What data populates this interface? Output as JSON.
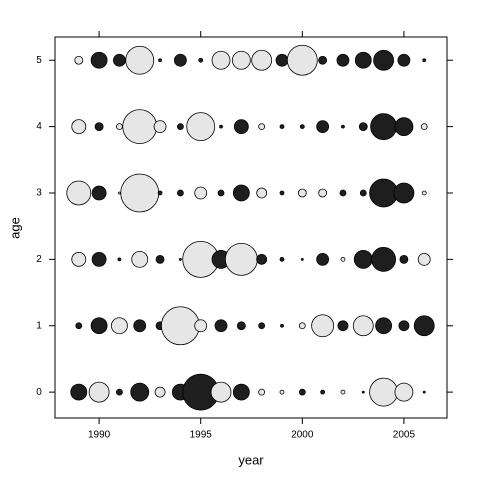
{
  "chart_data": {
    "type": "bubble",
    "x_label": "year",
    "y_label": "age",
    "x": [
      1989,
      1990,
      1991,
      1992,
      1993,
      1994,
      1995,
      1996,
      1997,
      1998,
      1999,
      2000,
      2001,
      2002,
      2003,
      2004,
      2005,
      2006
    ],
    "y": [
      0,
      1,
      2,
      3,
      4,
      5
    ],
    "values": [
      [
        0.8,
        -1.0,
        0.3,
        0.9,
        -0.5,
        0.8,
        1.8,
        -1.0,
        0.8,
        -0.3,
        -0.2,
        0.3,
        0.2,
        -0.2,
        0.1,
        -1.4,
        -0.9,
        0.1
      ],
      [
        0.3,
        0.8,
        -0.8,
        0.6,
        0.4,
        -1.9,
        -0.6,
        0.6,
        0.4,
        0.3,
        0.15,
        -0.3,
        -1.1,
        0.5,
        -1.0,
        0.8,
        0.5,
        1.0
      ],
      [
        -0.7,
        0.7,
        0.15,
        -0.8,
        0.4,
        0.1,
        -1.8,
        0.9,
        -1.6,
        0.5,
        0.2,
        0.1,
        0.6,
        -0.2,
        0.9,
        1.2,
        0.4,
        -0.6
      ],
      [
        -1.2,
        0.7,
        -0.1,
        -1.9,
        0.2,
        0.3,
        -0.6,
        0.3,
        0.8,
        -0.5,
        0.2,
        -0.4,
        -0.4,
        0.3,
        0.3,
        1.4,
        1.0,
        -0.2
      ],
      [
        -0.7,
        0.4,
        -0.3,
        -1.7,
        -0.6,
        0.3,
        -1.4,
        0.15,
        0.7,
        -0.3,
        0.2,
        0.2,
        0.6,
        0.15,
        0.4,
        1.3,
        0.9,
        -0.3
      ],
      [
        -0.4,
        0.8,
        0.6,
        -1.4,
        0.15,
        0.6,
        0.2,
        -0.9,
        -0.9,
        -1.0,
        0.6,
        -1.5,
        0.4,
        0.6,
        0.8,
        1.0,
        0.6,
        0.15
      ]
    ],
    "positive_color": "#1e1e1e",
    "negative_color": "#e6e6e6",
    "xlim": [
      1987.83,
      2007.12
    ],
    "xticks": [
      1990,
      1995,
      2000,
      2005
    ],
    "ylim": [
      -0.39,
      5.35
    ],
    "yticks": [
      0,
      1,
      2,
      3,
      4,
      5
    ]
  }
}
